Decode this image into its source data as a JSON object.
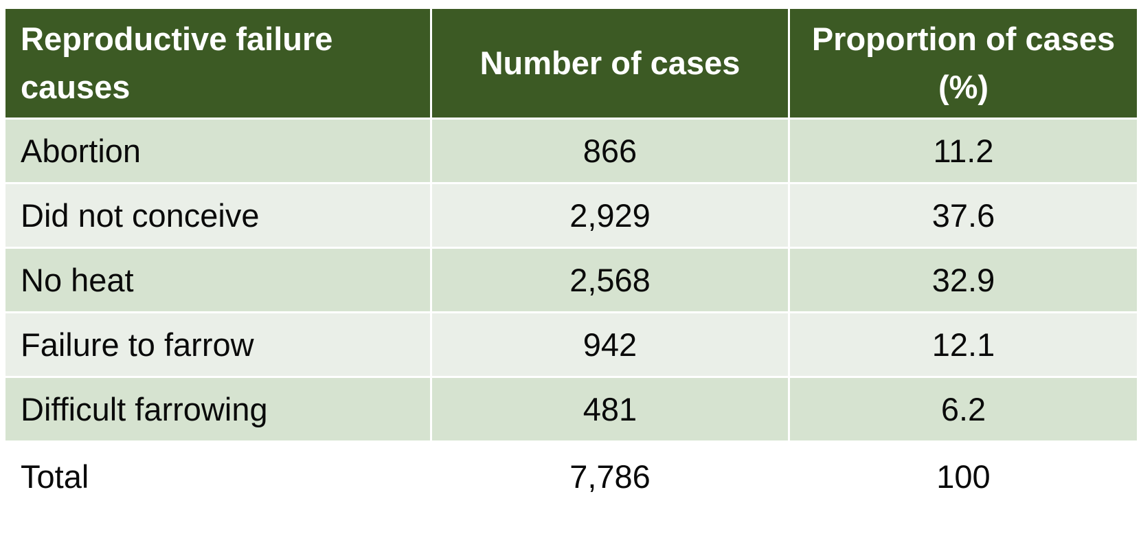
{
  "table": {
    "headers": [
      "Reproductive failure causes",
      "Number of cases",
      "Proportion of cases (%)"
    ],
    "rows": [
      {
        "cause": "Abortion",
        "cases": "866",
        "proportion": "11.2"
      },
      {
        "cause": "Did not conceive",
        "cases": "2,929",
        "proportion": "37.6"
      },
      {
        "cause": "No heat",
        "cases": "2,568",
        "proportion": "32.9"
      },
      {
        "cause": "Failure to farrow",
        "cases": "942",
        "proportion": "12.1"
      },
      {
        "cause": "Difficult farrowing",
        "cases": "481",
        "proportion": "6.2"
      }
    ],
    "total": {
      "label": "Total",
      "cases": "7,786",
      "proportion": "100"
    }
  },
  "colors": {
    "header_bg": "#3c5a24",
    "row_odd": "#d6e3d0",
    "row_even": "#eaefe8"
  }
}
